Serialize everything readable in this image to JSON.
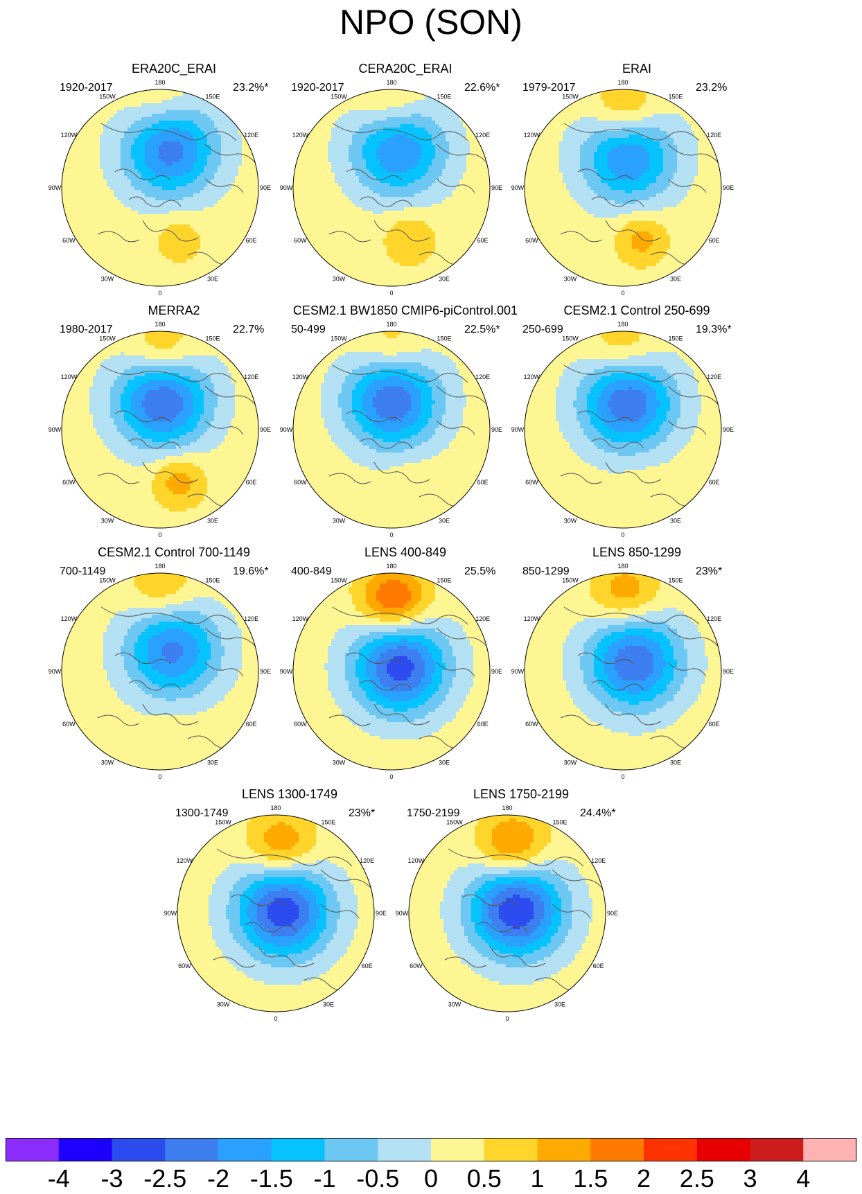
{
  "title": "NPO (SON)",
  "colors": {
    "land_outline": "#555555",
    "contour_outline": "#999999"
  },
  "panels": [
    {
      "title": "ERA20C_ERAI",
      "period": "1920-2017",
      "variance": "23.2%*",
      "pattern": {
        "neg_lon": 165,
        "neg_r": 0.4,
        "neg_amp": -2.5,
        "pos_lon": 180,
        "pos_r": 0.85,
        "pos_amp": 0.6,
        "atl_amp": 0.6
      }
    },
    {
      "title": "CERA20C_ERAI",
      "period": "1920-2017",
      "variance": "22.6%*",
      "pattern": {
        "neg_lon": 170,
        "neg_r": 0.4,
        "neg_amp": -2.3,
        "pos_lon": 180,
        "pos_r": 0.82,
        "pos_amp": 0.8,
        "atl_amp": 0.8
      }
    },
    {
      "title": "ERAI",
      "period": "1979-2017",
      "variance": "23.2%",
      "pattern": {
        "neg_lon": 170,
        "neg_r": 0.33,
        "neg_amp": -2.3,
        "pos_lon": 178,
        "pos_r": 0.78,
        "pos_amp": 1.2,
        "atl_amp": 1.0
      }
    },
    {
      "title": "MERRA2",
      "period": "1980-2017",
      "variance": "22.7%",
      "pattern": {
        "neg_lon": 175,
        "neg_r": 0.3,
        "neg_amp": -2.8,
        "pos_lon": 178,
        "pos_r": 0.78,
        "pos_amp": 1.1,
        "atl_amp": 1.1
      }
    },
    {
      "title": "CESM2.1 BW1850 CMIP6-piControl.001",
      "period": "50-499",
      "variance": "22.5%*",
      "pattern": {
        "neg_lon": 178,
        "neg_r": 0.3,
        "neg_amp": -2.7,
        "pos_lon": 180,
        "pos_r": 0.82,
        "pos_amp": 0.8,
        "atl_amp": 0.2
      }
    },
    {
      "title": "CESM2.1 Control 250-699",
      "period": "250-699",
      "variance": "19.3%*",
      "pattern": {
        "neg_lon": 170,
        "neg_r": 0.28,
        "neg_amp": -2.7,
        "pos_lon": 180,
        "pos_r": 0.82,
        "pos_amp": 0.9,
        "atl_amp": 0.1
      }
    },
    {
      "title": "CESM2.1 Control 700-1149",
      "period": "700-1149",
      "variance": "19.6%*",
      "pattern": {
        "neg_lon": 150,
        "neg_r": 0.25,
        "neg_amp": -2.4,
        "pos_lon": 178,
        "pos_r": 0.82,
        "pos_amp": 0.9,
        "atl_amp": 0.1
      }
    },
    {
      "title": "LENS 400-849",
      "period": "400-849",
      "variance": "25.5%",
      "pattern": {
        "neg_lon": 120,
        "neg_r": 0.1,
        "neg_amp": -3.0,
        "pos_lon": 178,
        "pos_r": 0.72,
        "pos_amp": 2.0,
        "atl_amp": 0.0
      }
    },
    {
      "title": "LENS 850-1299",
      "period": "850-1299",
      "variance": "23%*",
      "pattern": {
        "neg_lon": 130,
        "neg_r": 0.15,
        "neg_amp": -2.7,
        "pos_lon": 178,
        "pos_r": 0.78,
        "pos_amp": 1.2,
        "atl_amp": 0.0
      }
    },
    {
      "title": "LENS 1300-1749",
      "period": "1300-1749",
      "variance": "23%*",
      "pattern": {
        "neg_lon": 110,
        "neg_r": 0.08,
        "neg_amp": -3.1,
        "pos_lon": 175,
        "pos_r": 0.68,
        "pos_amp": 1.4,
        "atl_amp": 0.0
      }
    },
    {
      "title": "LENS 1750-2199",
      "period": "1750-2199",
      "variance": "24.4%*",
      "pattern": {
        "neg_lon": 110,
        "neg_r": 0.1,
        "neg_amp": -3.2,
        "pos_lon": 175,
        "pos_r": 0.68,
        "pos_amp": 1.6,
        "atl_amp": 0.0
      }
    }
  ],
  "map_labels": [
    {
      "text": "180",
      "lon": 180
    },
    {
      "text": "150W",
      "lon": 210
    },
    {
      "text": "150E",
      "lon": 150
    },
    {
      "text": "120W",
      "lon": 240
    },
    {
      "text": "120E",
      "lon": 120
    },
    {
      "text": "90W",
      "lon": 270
    },
    {
      "text": "90E",
      "lon": 90
    },
    {
      "text": "60W",
      "lon": 300
    },
    {
      "text": "60E",
      "lon": 60
    },
    {
      "text": "30W",
      "lon": 330
    },
    {
      "text": "30E",
      "lon": 30
    },
    {
      "text": "0",
      "lon": 0
    }
  ],
  "colorbar": {
    "colors": [
      "#8b2cff",
      "#1e00ff",
      "#2d4cf0",
      "#3d7ff0",
      "#2aa0ff",
      "#06c3ff",
      "#6cc8f3",
      "#b3e0f3",
      "#fdf693",
      "#ffd42b",
      "#ffaa00",
      "#ff7b00",
      "#ff3300",
      "#e80000",
      "#cc1c1c",
      "#ffb2b2"
    ],
    "labels": [
      "-4",
      "-3",
      "-2.5",
      "-2",
      "-1.5",
      "-1",
      "-0.5",
      "0",
      "0.5",
      "1",
      "1.5",
      "2",
      "2.5",
      "3",
      "4"
    ]
  }
}
